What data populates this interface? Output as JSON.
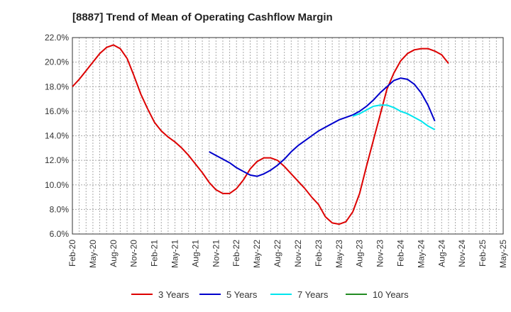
{
  "chart_data": {
    "type": "line",
    "title": "[8887]  Trend of Mean of Operating Cashflow Margin",
    "xlabel": "",
    "ylabel": "",
    "ylim": [
      6.0,
      22.0
    ],
    "y_ticks": [
      "6.0%",
      "8.0%",
      "10.0%",
      "12.0%",
      "14.0%",
      "16.0%",
      "18.0%",
      "20.0%",
      "22.0%"
    ],
    "x_tick_labels": [
      "Feb-20",
      "May-20",
      "Aug-20",
      "Nov-20",
      "Feb-21",
      "May-21",
      "Aug-21",
      "Nov-21",
      "Feb-22",
      "May-22",
      "Aug-22",
      "Nov-22",
      "Feb-23",
      "May-23",
      "Aug-23",
      "Nov-23",
      "Feb-24",
      "May-24",
      "Aug-24",
      "Nov-24",
      "Feb-25",
      "May-25"
    ],
    "x_start": "2020-02",
    "grid": true,
    "legend_position": "bottom",
    "series": [
      {
        "name": "3 Years",
        "color": "#dd0000",
        "values": [
          [
            "2020-02",
            18.0
          ],
          [
            "2020-03",
            18.6
          ],
          [
            "2020-04",
            19.3
          ],
          [
            "2020-05",
            20.0
          ],
          [
            "2020-06",
            20.7
          ],
          [
            "2020-07",
            21.2
          ],
          [
            "2020-08",
            21.4
          ],
          [
            "2020-09",
            21.1
          ],
          [
            "2020-10",
            20.3
          ],
          [
            "2020-11",
            18.9
          ],
          [
            "2020-12",
            17.4
          ],
          [
            "2021-01",
            16.2
          ],
          [
            "2021-02",
            15.1
          ],
          [
            "2021-03",
            14.4
          ],
          [
            "2021-04",
            13.9
          ],
          [
            "2021-05",
            13.5
          ],
          [
            "2021-06",
            13.0
          ],
          [
            "2021-07",
            12.4
          ],
          [
            "2021-08",
            11.7
          ],
          [
            "2021-09",
            11.0
          ],
          [
            "2021-10",
            10.2
          ],
          [
            "2021-11",
            9.6
          ],
          [
            "2021-12",
            9.3
          ],
          [
            "2022-01",
            9.3
          ],
          [
            "2022-02",
            9.7
          ],
          [
            "2022-03",
            10.4
          ],
          [
            "2022-04",
            11.3
          ],
          [
            "2022-05",
            11.9
          ],
          [
            "2022-06",
            12.2
          ],
          [
            "2022-07",
            12.2
          ],
          [
            "2022-08",
            12.0
          ],
          [
            "2022-09",
            11.5
          ],
          [
            "2022-10",
            10.9
          ],
          [
            "2022-11",
            10.3
          ],
          [
            "2022-12",
            9.7
          ],
          [
            "2023-01",
            9.0
          ],
          [
            "2023-02",
            8.4
          ],
          [
            "2023-03",
            7.4
          ],
          [
            "2023-04",
            6.9
          ],
          [
            "2023-05",
            6.8
          ],
          [
            "2023-06",
            7.0
          ],
          [
            "2023-07",
            7.8
          ],
          [
            "2023-08",
            9.3
          ],
          [
            "2023-09",
            11.5
          ],
          [
            "2023-10",
            13.6
          ],
          [
            "2023-11",
            15.7
          ],
          [
            "2023-12",
            17.8
          ],
          [
            "2024-01",
            19.1
          ],
          [
            "2024-02",
            20.1
          ],
          [
            "2024-03",
            20.7
          ],
          [
            "2024-04",
            21.0
          ],
          [
            "2024-05",
            21.1
          ],
          [
            "2024-06",
            21.1
          ],
          [
            "2024-07",
            20.9
          ],
          [
            "2024-08",
            20.6
          ],
          [
            "2024-09",
            19.9
          ]
        ]
      },
      {
        "name": "5 Years",
        "color": "#0000cc",
        "values": [
          [
            "2021-10",
            12.7
          ],
          [
            "2021-11",
            12.4
          ],
          [
            "2021-12",
            12.1
          ],
          [
            "2022-01",
            11.8
          ],
          [
            "2022-02",
            11.4
          ],
          [
            "2022-03",
            11.1
          ],
          [
            "2022-04",
            10.8
          ],
          [
            "2022-05",
            10.7
          ],
          [
            "2022-06",
            10.9
          ],
          [
            "2022-07",
            11.2
          ],
          [
            "2022-08",
            11.6
          ],
          [
            "2022-09",
            12.1
          ],
          [
            "2022-10",
            12.7
          ],
          [
            "2022-11",
            13.2
          ],
          [
            "2022-12",
            13.6
          ],
          [
            "2023-01",
            14.0
          ],
          [
            "2023-02",
            14.4
          ],
          [
            "2023-03",
            14.7
          ],
          [
            "2023-04",
            15.0
          ],
          [
            "2023-05",
            15.3
          ],
          [
            "2023-06",
            15.5
          ],
          [
            "2023-07",
            15.7
          ],
          [
            "2023-08",
            16.0
          ],
          [
            "2023-09",
            16.4
          ],
          [
            "2023-10",
            16.9
          ],
          [
            "2023-11",
            17.5
          ],
          [
            "2023-12",
            18.0
          ],
          [
            "2024-01",
            18.5
          ],
          [
            "2024-02",
            18.7
          ],
          [
            "2024-03",
            18.6
          ],
          [
            "2024-04",
            18.2
          ],
          [
            "2024-05",
            17.5
          ],
          [
            "2024-06",
            16.5
          ],
          [
            "2024-07",
            15.2
          ]
        ]
      },
      {
        "name": "7 Years",
        "color": "#00e5ee",
        "values": [
          [
            "2023-07",
            15.6
          ],
          [
            "2023-08",
            15.8
          ],
          [
            "2023-09",
            16.1
          ],
          [
            "2023-10",
            16.4
          ],
          [
            "2023-11",
            16.5
          ],
          [
            "2023-12",
            16.5
          ],
          [
            "2024-01",
            16.3
          ],
          [
            "2024-02",
            16.0
          ],
          [
            "2024-03",
            15.8
          ],
          [
            "2024-04",
            15.5
          ],
          [
            "2024-05",
            15.2
          ],
          [
            "2024-06",
            14.8
          ],
          [
            "2024-07",
            14.5
          ]
        ]
      },
      {
        "name": "10 Years",
        "color": "#228b22",
        "values": []
      }
    ]
  }
}
